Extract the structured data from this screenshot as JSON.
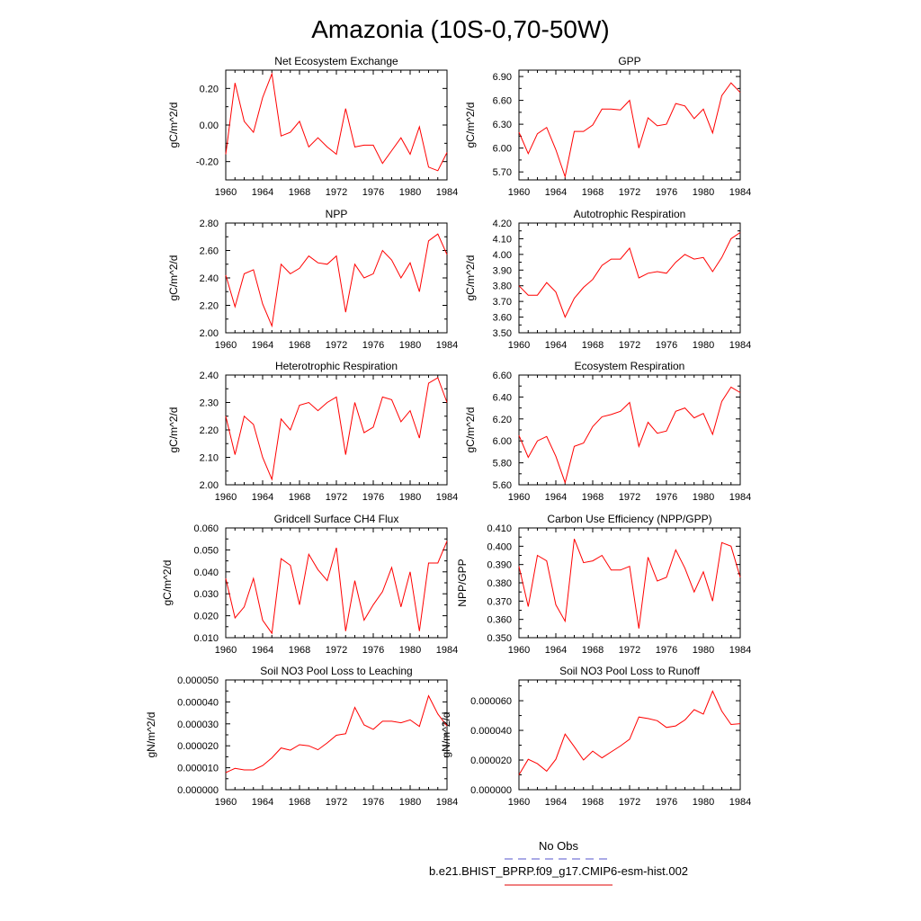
{
  "title": "Amazonia (10S-0,70-50W)",
  "legend": {
    "entries": [
      {
        "label": "No Obs",
        "color": "#5555cc",
        "dash": true
      },
      {
        "label": "b.e21.BHIST_BPRP.f09_g17.CMIP6-esm-hist.002",
        "color": "#e00000",
        "dash": false
      }
    ]
  },
  "line_color": "#ff0000",
  "chart_data": [
    {
      "type": "line",
      "title": "Net Ecosystem Exchange",
      "ylabel": "gC/m^2/d",
      "xlabel": "",
      "xlim": [
        1960,
        1984
      ],
      "ylim": [
        -0.3,
        0.3
      ],
      "xticks": [
        "1960",
        "1964",
        "1968",
        "1972",
        "1976",
        "1980",
        "1984"
      ],
      "yticks": [
        "-0.20",
        "0.00",
        "0.20"
      ],
      "ytick_values": [
        -0.2,
        0.0,
        0.2
      ],
      "x": [
        1960,
        1961,
        1962,
        1963,
        1964,
        1965,
        1966,
        1967,
        1968,
        1969,
        1970,
        1971,
        1972,
        1973,
        1974,
        1975,
        1976,
        1977,
        1978,
        1979,
        1980,
        1981,
        1982,
        1983,
        1984
      ],
      "values": [
        -0.16,
        0.23,
        0.02,
        -0.04,
        0.15,
        0.28,
        -0.06,
        -0.04,
        0.02,
        -0.12,
        -0.07,
        -0.12,
        -0.16,
        0.09,
        -0.12,
        -0.11,
        -0.11,
        -0.21,
        -0.14,
        -0.07,
        -0.16,
        -0.01,
        -0.23,
        -0.25,
        -0.15
      ]
    },
    {
      "type": "line",
      "title": "GPP",
      "ylabel": "gC/m^2/d",
      "xlabel": "",
      "xlim": [
        1960,
        1984
      ],
      "ylim": [
        5.6,
        6.98
      ],
      "xticks": [
        "1960",
        "1964",
        "1968",
        "1972",
        "1976",
        "1980",
        "1984"
      ],
      "yticks": [
        "5.70",
        "6.00",
        "6.30",
        "6.60",
        "6.90"
      ],
      "ytick_values": [
        5.7,
        6.0,
        6.3,
        6.6,
        6.9
      ],
      "x": [
        1960,
        1961,
        1962,
        1963,
        1964,
        1965,
        1966,
        1967,
        1968,
        1969,
        1970,
        1971,
        1972,
        1973,
        1974,
        1975,
        1976,
        1977,
        1978,
        1979,
        1980,
        1981,
        1982,
        1983,
        1984
      ],
      "values": [
        6.2,
        5.93,
        6.18,
        6.26,
        5.98,
        5.64,
        6.21,
        6.21,
        6.29,
        6.49,
        6.49,
        6.48,
        6.6,
        6.0,
        6.38,
        6.28,
        6.3,
        6.56,
        6.53,
        6.37,
        6.49,
        6.19,
        6.66,
        6.82,
        6.7
      ]
    },
    {
      "type": "line",
      "title": "NPP",
      "ylabel": "gC/m^2/d",
      "xlabel": "",
      "xlim": [
        1960,
        1984
      ],
      "ylim": [
        2.0,
        2.8
      ],
      "xticks": [
        "1960",
        "1964",
        "1968",
        "1972",
        "1976",
        "1980",
        "1984"
      ],
      "yticks": [
        "2.00",
        "2.20",
        "2.40",
        "2.60",
        "2.80"
      ],
      "ytick_values": [
        2.0,
        2.2,
        2.4,
        2.6,
        2.8
      ],
      "x": [
        1960,
        1961,
        1962,
        1963,
        1964,
        1965,
        1966,
        1967,
        1968,
        1969,
        1970,
        1971,
        1972,
        1973,
        1974,
        1975,
        1976,
        1977,
        1978,
        1979,
        1980,
        1981,
        1982,
        1983,
        1984
      ],
      "values": [
        2.42,
        2.19,
        2.43,
        2.46,
        2.21,
        2.05,
        2.5,
        2.43,
        2.47,
        2.56,
        2.51,
        2.5,
        2.56,
        2.15,
        2.5,
        2.4,
        2.43,
        2.6,
        2.53,
        2.4,
        2.51,
        2.3,
        2.67,
        2.72,
        2.57
      ]
    },
    {
      "type": "line",
      "title": "Autotrophic Respiration",
      "ylabel": "gC/m^2/d",
      "xlabel": "",
      "xlim": [
        1960,
        1984
      ],
      "ylim": [
        3.5,
        4.2
      ],
      "xticks": [
        "1960",
        "1964",
        "1968",
        "1972",
        "1976",
        "1980",
        "1984"
      ],
      "yticks": [
        "3.50",
        "3.60",
        "3.70",
        "3.80",
        "3.90",
        "4.00",
        "4.10",
        "4.20"
      ],
      "ytick_values": [
        3.5,
        3.6,
        3.7,
        3.8,
        3.9,
        4.0,
        4.1,
        4.2
      ],
      "x": [
        1960,
        1961,
        1962,
        1963,
        1964,
        1965,
        1966,
        1967,
        1968,
        1969,
        1970,
        1971,
        1972,
        1973,
        1974,
        1975,
        1976,
        1977,
        1978,
        1979,
        1980,
        1981,
        1982,
        1983,
        1984
      ],
      "values": [
        3.8,
        3.74,
        3.74,
        3.82,
        3.76,
        3.6,
        3.72,
        3.79,
        3.84,
        3.93,
        3.97,
        3.97,
        4.04,
        3.85,
        3.88,
        3.89,
        3.88,
        3.95,
        4.0,
        3.97,
        3.98,
        3.89,
        3.98,
        4.1,
        4.14
      ]
    },
    {
      "type": "line",
      "title": "Heterotrophic Respiration",
      "ylabel": "gC/m^2/d",
      "xlabel": "",
      "xlim": [
        1960,
        1984
      ],
      "ylim": [
        2.0,
        2.4
      ],
      "xticks": [
        "1960",
        "1964",
        "1968",
        "1972",
        "1976",
        "1980",
        "1984"
      ],
      "yticks": [
        "2.00",
        "2.10",
        "2.20",
        "2.30",
        "2.40"
      ],
      "ytick_values": [
        2.0,
        2.1,
        2.2,
        2.3,
        2.4
      ],
      "x": [
        1960,
        1961,
        1962,
        1963,
        1964,
        1965,
        1966,
        1967,
        1968,
        1969,
        1970,
        1971,
        1972,
        1973,
        1974,
        1975,
        1976,
        1977,
        1978,
        1979,
        1980,
        1981,
        1982,
        1983,
        1984
      ],
      "values": [
        2.25,
        2.11,
        2.25,
        2.22,
        2.1,
        2.02,
        2.24,
        2.2,
        2.29,
        2.3,
        2.27,
        2.3,
        2.32,
        2.11,
        2.3,
        2.19,
        2.21,
        2.32,
        2.31,
        2.23,
        2.27,
        2.17,
        2.37,
        2.39,
        2.3
      ]
    },
    {
      "type": "line",
      "title": "Ecosystem Respiration",
      "ylabel": "gC/m^2/d",
      "xlabel": "",
      "xlim": [
        1960,
        1984
      ],
      "ylim": [
        5.6,
        6.6
      ],
      "xticks": [
        "1960",
        "1964",
        "1968",
        "1972",
        "1976",
        "1980",
        "1984"
      ],
      "yticks": [
        "5.60",
        "5.80",
        "6.00",
        "6.20",
        "6.40",
        "6.60"
      ],
      "ytick_values": [
        5.6,
        5.8,
        6.0,
        6.2,
        6.4,
        6.6
      ],
      "x": [
        1960,
        1961,
        1962,
        1963,
        1964,
        1965,
        1966,
        1967,
        1968,
        1969,
        1970,
        1971,
        1972,
        1973,
        1974,
        1975,
        1976,
        1977,
        1978,
        1979,
        1980,
        1981,
        1982,
        1983,
        1984
      ],
      "values": [
        6.05,
        5.85,
        6.0,
        6.04,
        5.86,
        5.62,
        5.95,
        5.98,
        6.13,
        6.22,
        6.24,
        6.27,
        6.35,
        5.95,
        6.17,
        6.07,
        6.09,
        6.27,
        6.3,
        6.21,
        6.25,
        6.06,
        6.36,
        6.49,
        6.44
      ]
    },
    {
      "type": "line",
      "title": "Gridcell Surface CH4 Flux",
      "ylabel": "gC/m^2/d",
      "xlabel": "",
      "xlim": [
        1960,
        1984
      ],
      "ylim": [
        0.01,
        0.06
      ],
      "xticks": [
        "1960",
        "1964",
        "1968",
        "1972",
        "1976",
        "1980",
        "1984"
      ],
      "yticks": [
        "0.010",
        "0.020",
        "0.030",
        "0.040",
        "0.050",
        "0.060"
      ],
      "ytick_values": [
        0.01,
        0.02,
        0.03,
        0.04,
        0.05,
        0.06
      ],
      "x": [
        1960,
        1961,
        1962,
        1963,
        1964,
        1965,
        1966,
        1967,
        1968,
        1969,
        1970,
        1971,
        1972,
        1973,
        1974,
        1975,
        1976,
        1977,
        1978,
        1979,
        1980,
        1981,
        1982,
        1983,
        1984
      ],
      "values": [
        0.037,
        0.019,
        0.024,
        0.037,
        0.018,
        0.012,
        0.046,
        0.043,
        0.025,
        0.048,
        0.041,
        0.036,
        0.051,
        0.013,
        0.036,
        0.018,
        0.025,
        0.031,
        0.042,
        0.024,
        0.04,
        0.013,
        0.044,
        0.044,
        0.054
      ]
    },
    {
      "type": "line",
      "title": "Carbon Use Efficiency (NPP/GPP)",
      "ylabel": "NPP/GPP",
      "xlabel": "",
      "xlim": [
        1960,
        1984
      ],
      "ylim": [
        0.35,
        0.41
      ],
      "xticks": [
        "1960",
        "1964",
        "1968",
        "1972",
        "1976",
        "1980",
        "1984"
      ],
      "yticks": [
        "0.350",
        "0.360",
        "0.370",
        "0.380",
        "0.390",
        "0.400",
        "0.410"
      ],
      "ytick_values": [
        0.35,
        0.36,
        0.37,
        0.38,
        0.39,
        0.4,
        0.41
      ],
      "x": [
        1960,
        1961,
        1962,
        1963,
        1964,
        1965,
        1966,
        1967,
        1968,
        1969,
        1970,
        1971,
        1972,
        1973,
        1974,
        1975,
        1976,
        1977,
        1978,
        1979,
        1980,
        1981,
        1982,
        1983,
        1984
      ],
      "values": [
        0.389,
        0.367,
        0.395,
        0.392,
        0.368,
        0.359,
        0.404,
        0.391,
        0.392,
        0.395,
        0.387,
        0.387,
        0.389,
        0.355,
        0.394,
        0.381,
        0.383,
        0.398,
        0.388,
        0.375,
        0.386,
        0.37,
        0.402,
        0.4,
        0.383
      ]
    },
    {
      "type": "line",
      "title": "Soil NO3 Pool Loss to Leaching",
      "ylabel": "gN/m^2/d",
      "xlabel": "",
      "xlim": [
        1960,
        1984
      ],
      "ylim": [
        0.0,
        5e-05
      ],
      "xticks": [
        "1960",
        "1964",
        "1968",
        "1972",
        "1976",
        "1980",
        "1984"
      ],
      "yticks": [
        "0.000000",
        "0.000010",
        "0.000020",
        "0.000030",
        "0.000040",
        "0.000050"
      ],
      "ytick_values": [
        0.0,
        1e-05,
        2e-05,
        3e-05,
        4e-05,
        5e-05
      ],
      "x": [
        1960,
        1961,
        1962,
        1963,
        1964,
        1965,
        1966,
        1967,
        1968,
        1969,
        1970,
        1971,
        1972,
        1973,
        1974,
        1975,
        1976,
        1977,
        1978,
        1979,
        1980,
        1981,
        1982,
        1983,
        1984
      ],
      "values": [
        7.8e-06,
        9.7e-06,
        9e-06,
        9e-06,
        1.1e-05,
        1.45e-05,
        1.9e-05,
        1.8e-05,
        2.05e-05,
        2e-05,
        1.82e-05,
        2.13e-05,
        2.48e-05,
        2.55e-05,
        3.75e-05,
        2.95e-05,
        2.75e-05,
        3.12e-05,
        3.12e-05,
        3.05e-05,
        3.18e-05,
        2.88e-05,
        4.28e-05,
        3.45e-05,
        2.9e-05
      ]
    },
    {
      "type": "line",
      "title": "Soil NO3 Pool Loss to Runoff",
      "ylabel": "gN/m^2/d",
      "xlabel": "",
      "xlim": [
        1960,
        1984
      ],
      "ylim": [
        0.0,
        7.4e-05
      ],
      "xticks": [
        "1960",
        "1964",
        "1968",
        "1972",
        "1976",
        "1980",
        "1984"
      ],
      "yticks": [
        "0.000000",
        "0.000020",
        "0.000040",
        "0.000060"
      ],
      "ytick_values": [
        0.0,
        2e-05,
        4e-05,
        6e-05
      ],
      "x": [
        1960,
        1961,
        1962,
        1963,
        1964,
        1965,
        1966,
        1967,
        1968,
        1969,
        1970,
        1971,
        1972,
        1973,
        1974,
        1975,
        1976,
        1977,
        1978,
        1979,
        1980,
        1981,
        1982,
        1983,
        1984
      ],
      "values": [
        1e-05,
        2.05e-05,
        1.75e-05,
        1.25e-05,
        2.05e-05,
        3.75e-05,
        2.9e-05,
        2e-05,
        2.6e-05,
        2.15e-05,
        2.55e-05,
        2.95e-05,
        3.4e-05,
        4.9e-05,
        4.8e-05,
        4.65e-05,
        4.2e-05,
        4.3e-05,
        4.7e-05,
        5.4e-05,
        5.1e-05,
        6.65e-05,
        5.3e-05,
        4.4e-05,
        4.45e-05
      ]
    }
  ]
}
